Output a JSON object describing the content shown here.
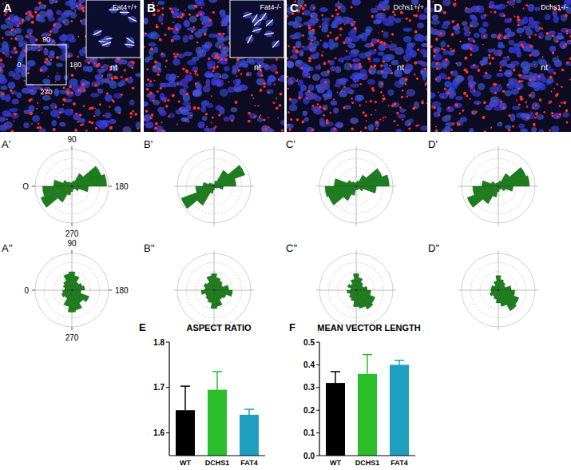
{
  "panels": [
    {
      "label": "A",
      "genotype": "Fat4+/+",
      "region": "nt",
      "angles": [
        "90",
        "0",
        "180",
        "270"
      ]
    },
    {
      "label": "B",
      "genotype": "Fat4-/-",
      "region": "nt"
    },
    {
      "label": "C",
      "genotype": "Dchs1+/+",
      "region": "nt"
    },
    {
      "label": "D",
      "genotype": "Dchs1-/-",
      "region": "nt"
    }
  ],
  "chart_data": [
    {
      "type": "rose",
      "title": "A'",
      "bins": [
        0,
        20,
        40,
        60,
        80,
        100,
        120,
        140,
        160,
        180,
        200,
        220,
        240,
        260,
        280,
        300,
        320,
        340,
        360
      ],
      "values": [
        0.1,
        0.05,
        0.03,
        0.02,
        0.02,
        0.03,
        0.08,
        0.17,
        0.19,
        0.09,
        0.04,
        0.02,
        0.02,
        0.03,
        0.05,
        0.1,
        0.18,
        0.16
      ],
      "color": "#1e7d1e",
      "ylim": [
        0,
        0.2
      ],
      "yticks": [
        0.05,
        0.1,
        0.15,
        0.2
      ],
      "xticks": [
        {
          "value": 90,
          "label": "90"
        },
        {
          "value": 0,
          "label": "O"
        },
        {
          "value": 180,
          "label": "180"
        },
        {
          "value": 270,
          "label": "270"
        }
      ],
      "grid": true,
      "tick_labels": "x"
    },
    {
      "type": "rose",
      "title": "B'",
      "bins": [
        0,
        20,
        40,
        60,
        80,
        100,
        120,
        140,
        160,
        180,
        200,
        220,
        240,
        260,
        280,
        300,
        320,
        340,
        360
      ],
      "values": [
        0.06,
        0.03,
        0.02,
        0.01,
        0.01,
        0.03,
        0.1,
        0.18,
        0.12,
        0.05,
        0.02,
        0.01,
        0.01,
        0.02,
        0.04,
        0.12,
        0.19,
        0.1
      ],
      "color": "#1e7d1e",
      "ylim": [
        0,
        0.2
      ],
      "yticks": [
        0.05,
        0.1,
        0.15,
        0.2
      ],
      "grid": true,
      "tick_labels": false
    },
    {
      "type": "rose",
      "title": "C'",
      "bins": [
        0,
        20,
        40,
        60,
        80,
        100,
        120,
        140,
        160,
        180,
        200,
        220,
        240,
        260,
        280,
        300,
        320,
        340,
        360
      ],
      "values": [
        0.12,
        0.05,
        0.03,
        0.02,
        0.02,
        0.03,
        0.07,
        0.15,
        0.18,
        0.11,
        0.04,
        0.02,
        0.02,
        0.02,
        0.05,
        0.09,
        0.16,
        0.17
      ],
      "color": "#1e7d1e",
      "ylim": [
        0,
        0.2
      ],
      "yticks": [
        0.05,
        0.1,
        0.15,
        0.2
      ],
      "grid": true,
      "tick_labels": false
    },
    {
      "type": "rose",
      "title": "D'",
      "bins": [
        0,
        20,
        40,
        60,
        80,
        100,
        120,
        140,
        160,
        180,
        200,
        220,
        240,
        260,
        280,
        300,
        320,
        340,
        360
      ],
      "values": [
        0.09,
        0.04,
        0.02,
        0.02,
        0.02,
        0.03,
        0.08,
        0.16,
        0.17,
        0.08,
        0.04,
        0.02,
        0.02,
        0.03,
        0.06,
        0.11,
        0.18,
        0.14
      ],
      "color": "#1e7d1e",
      "ylim": [
        0,
        0.2
      ],
      "yticks": [
        0.05,
        0.1,
        0.15,
        0.2
      ],
      "grid": true,
      "tick_labels": false
    },
    {
      "type": "rose",
      "title": "A''",
      "bins": [
        0,
        20,
        40,
        60,
        80,
        100,
        120,
        140,
        160,
        180,
        200,
        220,
        240,
        260,
        280,
        300,
        320,
        340,
        360
      ],
      "values": [
        0.04,
        0.05,
        0.06,
        0.09,
        0.1,
        0.08,
        0.05,
        0.06,
        0.07,
        0.05,
        0.1,
        0.08,
        0.11,
        0.12,
        0.09,
        0.05,
        0.06,
        0.05
      ],
      "color": "#1e7d1e",
      "ylim": [
        0,
        0.2
      ],
      "yticks": [
        0.05,
        0.1,
        0.15,
        0.2
      ],
      "xticks": [
        {
          "value": 90,
          "label": "90"
        },
        {
          "value": 0,
          "label": "0"
        },
        {
          "value": 180,
          "label": "180"
        },
        {
          "value": 270,
          "label": "270"
        }
      ],
      "grid": true,
      "tick_labels": "x"
    },
    {
      "type": "rose",
      "title": "B''",
      "bins": [
        0,
        20,
        40,
        60,
        80,
        100,
        120,
        140,
        160,
        180,
        200,
        220,
        240,
        260,
        280,
        300,
        320,
        340,
        360
      ],
      "values": [
        0.05,
        0.06,
        0.05,
        0.08,
        0.09,
        0.07,
        0.06,
        0.05,
        0.08,
        0.1,
        0.07,
        0.06,
        0.09,
        0.1,
        0.07,
        0.06,
        0.05,
        0.07
      ],
      "color": "#1e7d1e",
      "ylim": [
        0,
        0.2
      ],
      "yticks": [
        0.05,
        0.1,
        0.15,
        0.2
      ],
      "grid": true,
      "tick_labels": false
    },
    {
      "type": "rose",
      "title": "C''",
      "bins": [
        0,
        20,
        40,
        60,
        80,
        100,
        120,
        140,
        160,
        180,
        200,
        220,
        240,
        260,
        280,
        300,
        320,
        340,
        360
      ],
      "values": [
        0.03,
        0.05,
        0.04,
        0.06,
        0.09,
        0.07,
        0.05,
        0.04,
        0.06,
        0.08,
        0.11,
        0.12,
        0.1,
        0.09,
        0.06,
        0.05,
        0.04,
        0.05
      ],
      "color": "#1e7d1e",
      "ylim": [
        0,
        0.2
      ],
      "yticks": [
        0.05,
        0.1,
        0.15,
        0.2
      ],
      "grid": true,
      "tick_labels": false
    },
    {
      "type": "rose",
      "title": "D''",
      "bins": [
        0,
        20,
        40,
        60,
        80,
        100,
        120,
        140,
        160,
        180,
        200,
        220,
        240,
        260,
        280,
        300,
        320,
        340,
        360
      ],
      "values": [
        0.04,
        0.04,
        0.03,
        0.05,
        0.08,
        0.06,
        0.05,
        0.04,
        0.07,
        0.09,
        0.12,
        0.13,
        0.09,
        0.07,
        0.05,
        0.04,
        0.05,
        0.04
      ],
      "color": "#1e7d1e",
      "ylim": [
        0,
        0.2
      ],
      "yticks": [
        0.05,
        0.1,
        0.15,
        0.2
      ],
      "grid": true,
      "tick_labels": false
    },
    {
      "type": "bar",
      "panel_label": "E",
      "title": "ASPECT RATIO",
      "categories": [
        "WT",
        "DCHS1",
        "FAT4"
      ],
      "values": [
        1.65,
        1.695,
        1.64
      ],
      "errors": [
        0.053,
        0.04,
        0.012
      ],
      "colors": [
        "#000000",
        "#2bbf2b",
        "#1f9fbf"
      ],
      "ylim": [
        1.55,
        1.8
      ],
      "yticks": [
        1.6,
        1.7,
        1.8
      ]
    },
    {
      "type": "bar",
      "panel_label": "F",
      "title": "MEAN VECTOR LENGTH",
      "categories": [
        "WT",
        "DCHS1",
        "FAT4"
      ],
      "values": [
        0.32,
        0.36,
        0.4
      ],
      "errors": [
        0.05,
        0.085,
        0.02
      ],
      "colors": [
        "#000000",
        "#2bbf2b",
        "#1f9fbf"
      ],
      "ylim": [
        0,
        0.5
      ],
      "yticks": [
        {
          "value": 0,
          "label": "0.0"
        },
        0.1,
        0.2,
        0.3,
        0.4,
        0.5
      ]
    }
  ]
}
